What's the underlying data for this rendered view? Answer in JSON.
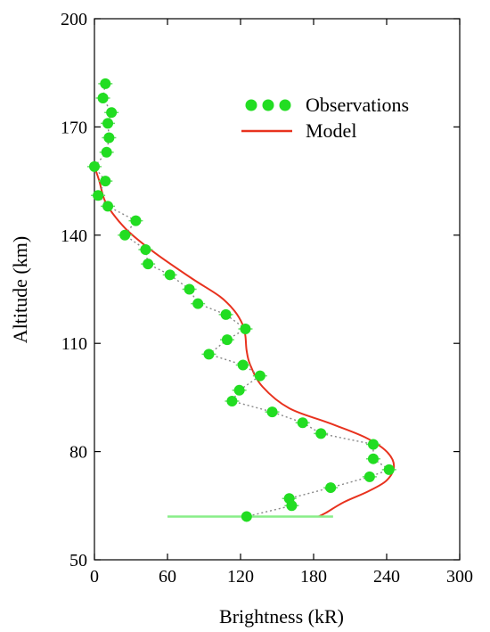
{
  "chart_data": {
    "type": "scatter",
    "title": "",
    "xlabel": "Brightness (kR)",
    "ylabel": "Altitude (km)",
    "xlim": [
      0,
      300
    ],
    "ylim": [
      50,
      200
    ],
    "xticks": [
      0,
      60,
      120,
      180,
      240,
      300
    ],
    "yticks": [
      50,
      80,
      110,
      140,
      170,
      200
    ],
    "grid": false,
    "legend": {
      "position": "top-right",
      "entries": [
        {
          "label": "Observations",
          "color": "#22dd22",
          "marker": "circle"
        },
        {
          "label": "Model",
          "color": "#e8321e",
          "marker": "line"
        }
      ]
    },
    "series": [
      {
        "name": "Observations",
        "kind": "scatter",
        "color": "#22dd22",
        "connector_color": "#888888",
        "x": [
          9,
          7,
          14,
          11,
          12,
          10,
          0,
          9,
          3,
          11,
          34,
          25,
          42,
          44,
          62,
          78,
          85,
          108,
          124,
          109,
          94,
          122,
          136,
          119,
          113,
          146,
          171,
          186,
          229,
          229,
          242,
          226,
          194,
          160,
          162,
          125
        ],
        "y": [
          182,
          178,
          174,
          171,
          167,
          163,
          159,
          155,
          151,
          148,
          144,
          140,
          136,
          132,
          129,
          125,
          121,
          118,
          114,
          111,
          107,
          104,
          101,
          97,
          94,
          91,
          88,
          85,
          82,
          78,
          75,
          73,
          70,
          67,
          65,
          62
        ]
      },
      {
        "name": "Model",
        "kind": "line",
        "color": "#e8321e",
        "x": [
          0,
          4,
          8,
          15,
          28,
          50,
          80,
          103,
          115,
          122,
          124,
          125,
          128,
          138,
          160,
          192,
          222,
          240,
          246,
          240,
          225,
          205,
          190,
          184
        ],
        "y": [
          159,
          155,
          150,
          146,
          141,
          135,
          128,
          123,
          119,
          115,
          112,
          108,
          104,
          98,
          92,
          88,
          84,
          80,
          76,
          72,
          69,
          66,
          63,
          62
        ]
      }
    ]
  }
}
